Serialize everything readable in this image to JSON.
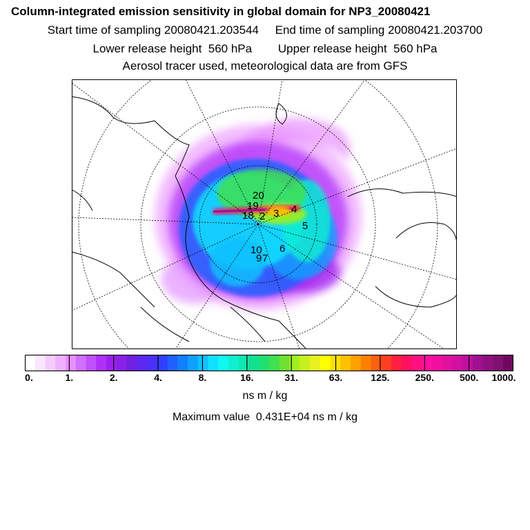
{
  "titles": {
    "line1": "Column-integrated emission sensitivity in global domain for NP3_20080421",
    "line2": "Start time of sampling 20080421.203544     End time of sampling 20080421.203700",
    "line3": "Lower release height  560 hPa        Upper release height  560 hPa",
    "line4": "Aerosol tracer used, meteorological data are from GFS"
  },
  "chart_data": {
    "type": "heatmap",
    "projection": "north-polar-stereographic",
    "colorbar": {
      "ticks": [
        "0.",
        "1.",
        "2.",
        "4.",
        "8.",
        "16.",
        "31.",
        "63.",
        "125.",
        "250.",
        "500.",
        "1000."
      ],
      "units": "ns m / kg",
      "colors": [
        "#ffffff",
        "#fbe6ff",
        "#f6ccff",
        "#f0b0ff",
        "#e890ff",
        "#d070ff",
        "#c050ff",
        "#b030f8",
        "#9c20f0",
        "#8a20e8",
        "#7020e0",
        "#5c28f0",
        "#4a30f8",
        "#3040ff",
        "#2060ff",
        "#1080ff",
        "#10a0ff",
        "#10c0ff",
        "#10e0ff",
        "#10f8f0",
        "#10f0d0",
        "#10e8b0",
        "#10e090",
        "#20e070",
        "#40e050",
        "#70e030",
        "#a0f020",
        "#c8f020",
        "#e8f020",
        "#ffff00",
        "#ffe000",
        "#ffc000",
        "#ffa000",
        "#ff8000",
        "#ff6010",
        "#ff4020",
        "#ff2040",
        "#ff1060",
        "#ff1080",
        "#ff10a0",
        "#f010a0",
        "#e010a0",
        "#d010a0",
        "#c010a0",
        "#a01090",
        "#901080",
        "#801070",
        "#700860"
      ]
    },
    "max_value": "Maximum value  0.431E+04 ns m / kg",
    "release_points": [
      "20",
      "19",
      "18",
      "2",
      "3",
      "4",
      "5",
      "10",
      "6",
      "9",
      "7"
    ]
  }
}
